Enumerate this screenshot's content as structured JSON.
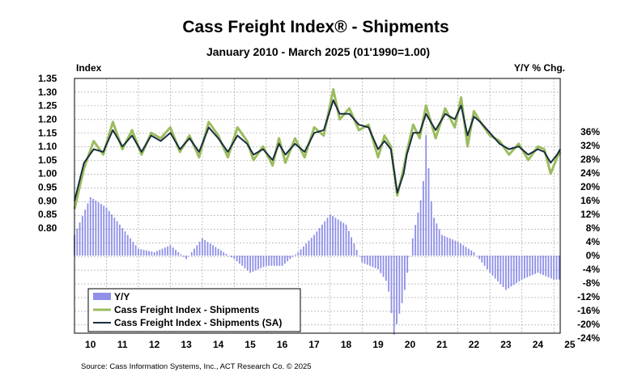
{
  "chart_data": {
    "type": "line",
    "title": "Cass Freight Index® - Shipments",
    "subtitle": "January 2010 - March 2025 (01'1990=1.00)",
    "ylabel_left": "Index",
    "ylabel_right": "Y/Y % Chg.",
    "source": "Source: Cass Information Systems, Inc., ACT Research Co. © 2025",
    "grid": true,
    "legend_position": "bottom-left",
    "x_range": [
      2010.0,
      2025.2
    ],
    "y_left_range": [
      0.8,
      1.35
    ],
    "y_left_ticks": [
      "1.35",
      "1.30",
      "1.25",
      "1.20",
      "1.15",
      "1.10",
      "1.05",
      "1.00",
      "0.95",
      "0.90",
      "0.85",
      "0.80"
    ],
    "y_right_ticks": [
      "36%",
      "32%",
      "28%",
      "24%",
      "20%",
      "16%",
      "12%",
      "8%",
      "4%",
      "0%",
      "-4%",
      "-8%",
      "-12%",
      "-16%",
      "-20%",
      "-24%"
    ],
    "x_tick_labels": [
      "10",
      "11",
      "12",
      "13",
      "14",
      "15",
      "16",
      "17",
      "18",
      "19",
      "20",
      "21",
      "22",
      "23",
      "24",
      "25"
    ],
    "x_tick_years": [
      2010,
      2011,
      2012,
      2013,
      2014,
      2015,
      2016,
      2017,
      2018,
      2019,
      2020,
      2021,
      2022,
      2023,
      2024,
      2025
    ],
    "colors": {
      "yoy": "#9090e8",
      "nsa": "#9cbc5e",
      "sa": "#1a2e40",
      "grid": "#9a9a9a"
    },
    "series": [
      {
        "name": "Y/Y",
        "kind": "bar",
        "axis": "right",
        "x": [
          2010.0,
          2010.5,
          2011.0,
          2011.5,
          2012.0,
          2012.5,
          2013.0,
          2013.5,
          2014.0,
          2014.5,
          2015.0,
          2015.5,
          2016.0,
          2016.5,
          2017.0,
          2017.5,
          2018.0,
          2018.5,
          2019.0,
          2019.5,
          2019.8,
          2020.0,
          2020.3,
          2020.6,
          2020.9,
          2021.0,
          2021.2,
          2021.5,
          2022.0,
          2022.5,
          2023.0,
          2023.5,
          2024.0,
          2024.5,
          2025.0
        ],
        "values": [
          6,
          17,
          14,
          8,
          2,
          1,
          3,
          -1,
          5,
          2,
          -1,
          -5,
          -3,
          -3,
          1,
          6,
          12,
          9,
          -2,
          -4,
          -8,
          -23,
          -12,
          6,
          19,
          35,
          12,
          6,
          4,
          1,
          -5,
          -10,
          -7,
          -5,
          -7
        ]
      },
      {
        "name": "Cass Freight Index - Shipments",
        "kind": "line",
        "axis": "left",
        "x": [
          2010.0,
          2010.3,
          2010.6,
          2010.9,
          2011.2,
          2011.5,
          2011.8,
          2012.1,
          2012.4,
          2012.7,
          2013.0,
          2013.3,
          2013.6,
          2013.9,
          2014.2,
          2014.5,
          2014.8,
          2015.1,
          2015.4,
          2015.6,
          2015.9,
          2016.2,
          2016.4,
          2016.6,
          2016.9,
          2017.2,
          2017.5,
          2017.8,
          2018.1,
          2018.3,
          2018.6,
          2018.9,
          2019.2,
          2019.5,
          2019.7,
          2019.9,
          2020.1,
          2020.3,
          2020.4,
          2020.6,
          2020.8,
          2021.0,
          2021.3,
          2021.6,
          2021.9,
          2022.1,
          2022.3,
          2022.5,
          2022.7,
          2023.0,
          2023.3,
          2023.6,
          2023.9,
          2024.2,
          2024.5,
          2024.7,
          2024.9,
          2025.1,
          2025.2
        ],
        "values": [
          0.87,
          1.02,
          1.12,
          1.07,
          1.19,
          1.09,
          1.16,
          1.07,
          1.15,
          1.13,
          1.17,
          1.08,
          1.14,
          1.06,
          1.19,
          1.14,
          1.06,
          1.17,
          1.12,
          1.05,
          1.1,
          1.03,
          1.13,
          1.04,
          1.13,
          1.06,
          1.17,
          1.14,
          1.31,
          1.2,
          1.24,
          1.16,
          1.18,
          1.06,
          1.14,
          1.1,
          0.92,
          1.02,
          1.08,
          1.18,
          1.13,
          1.25,
          1.13,
          1.24,
          1.17,
          1.28,
          1.1,
          1.23,
          1.19,
          1.14,
          1.12,
          1.07,
          1.11,
          1.05,
          1.1,
          1.09,
          1.0,
          1.06,
          1.08
        ]
      },
      {
        "name": "Cass Freight Index - Shipments (SA)",
        "kind": "line",
        "axis": "left",
        "x": [
          2010.0,
          2010.3,
          2010.6,
          2010.9,
          2011.2,
          2011.5,
          2011.8,
          2012.1,
          2012.4,
          2012.7,
          2013.0,
          2013.3,
          2013.6,
          2013.9,
          2014.2,
          2014.5,
          2014.8,
          2015.1,
          2015.4,
          2015.6,
          2015.9,
          2016.2,
          2016.4,
          2016.6,
          2016.9,
          2017.2,
          2017.5,
          2017.8,
          2018.1,
          2018.3,
          2018.6,
          2018.9,
          2019.2,
          2019.5,
          2019.7,
          2019.9,
          2020.1,
          2020.3,
          2020.4,
          2020.6,
          2020.8,
          2021.0,
          2021.3,
          2021.6,
          2021.9,
          2022.1,
          2022.3,
          2022.5,
          2022.7,
          2023.0,
          2023.3,
          2023.6,
          2023.9,
          2024.2,
          2024.5,
          2024.7,
          2024.9,
          2025.1,
          2025.2
        ],
        "values": [
          0.9,
          1.04,
          1.09,
          1.08,
          1.16,
          1.1,
          1.14,
          1.08,
          1.14,
          1.12,
          1.15,
          1.09,
          1.13,
          1.08,
          1.17,
          1.13,
          1.08,
          1.14,
          1.11,
          1.07,
          1.09,
          1.05,
          1.11,
          1.07,
          1.11,
          1.08,
          1.15,
          1.16,
          1.27,
          1.22,
          1.22,
          1.18,
          1.17,
          1.09,
          1.12,
          1.09,
          0.93,
          1.0,
          1.07,
          1.15,
          1.15,
          1.22,
          1.16,
          1.22,
          1.2,
          1.25,
          1.14,
          1.21,
          1.19,
          1.15,
          1.11,
          1.09,
          1.1,
          1.07,
          1.09,
          1.08,
          1.04,
          1.07,
          1.09
        ]
      }
    ]
  }
}
